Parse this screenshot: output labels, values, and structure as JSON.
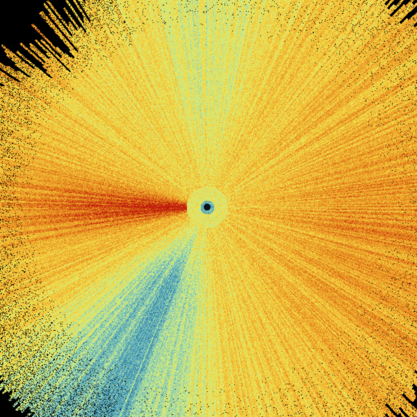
{
  "image": {
    "kind": "radar-ppi-scan",
    "background": "#000000",
    "colormap": [
      "#2f7fa8",
      "#6fbcc0",
      "#c8ec90",
      "#f2e24a",
      "#f0b030",
      "#e07818",
      "#c01c0c"
    ],
    "center_marker_color": "#0a1020"
  }
}
